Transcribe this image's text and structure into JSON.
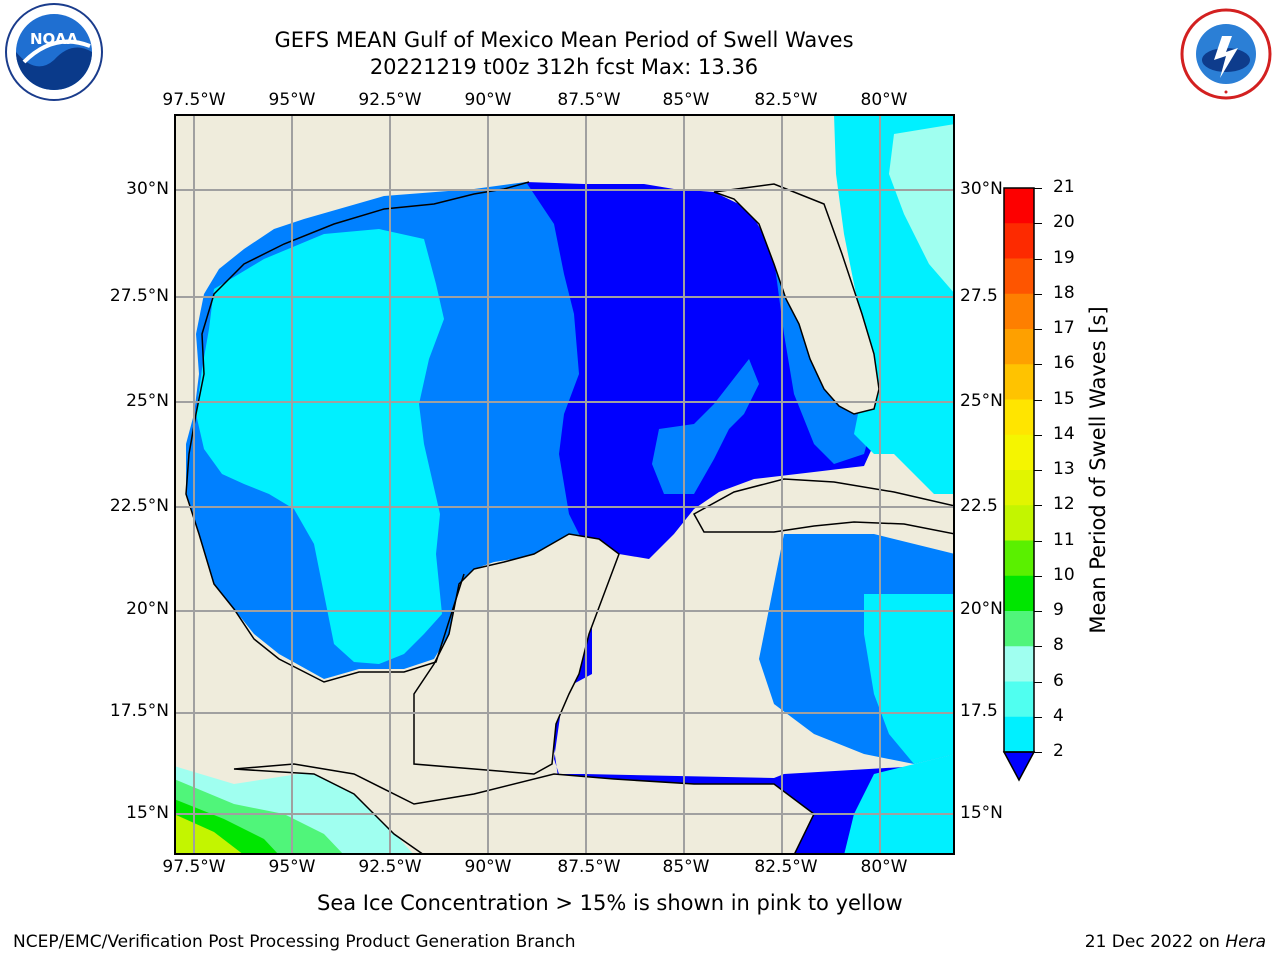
{
  "header": {
    "title_line1": "GEFS MEAN Gulf of Mexico Mean Period of Swell Waves",
    "title_line2": "20221219 t00z 312h fcst   Max: 13.36"
  },
  "logos": {
    "left": "NOAA",
    "left_ring": "NATIONAL OCEANIC AND ATMOSPHERIC ADMINISTRATION · U.S. DEPARTMENT OF COMMERCE",
    "right_ring": "NATIONAL WEATHER SERVICE"
  },
  "axes": {
    "lon_labels": [
      "97.5°W",
      "95°W",
      "92.5°W",
      "90°W",
      "87.5°W",
      "85°W",
      "82.5°W",
      "80°W"
    ],
    "lat_labels_left": [
      "30°N",
      "27.5°N",
      "25°N",
      "22.5°N",
      "20°N",
      "17.5°N",
      "15°N"
    ],
    "lat_labels_right": [
      "30°N",
      "27.5",
      "25°N",
      "22.5",
      "20°N",
      "17.5",
      "15°N"
    ]
  },
  "colorbar": {
    "label": "Mean Period of Swell Waves [s]",
    "ticks": [
      "21",
      "20",
      "19",
      "18",
      "17",
      "16",
      "15",
      "14",
      "13",
      "12",
      "11",
      "10",
      "9",
      "8",
      "6",
      "4",
      "2"
    ],
    "colors": [
      "#fd0000",
      "#fd2a00",
      "#fe5500",
      "#fe7f00",
      "#fea000",
      "#ffc300",
      "#ffe500",
      "#f5f500",
      "#e1f500",
      "#c3f500",
      "#5af000",
      "#00e600",
      "#50f57a",
      "#a0fff0",
      "#50fff0",
      "#00f0ff",
      "#0080ff",
      "#0000ff"
    ]
  },
  "map_colors": {
    "land": "#efecdc",
    "period_2_4": "#0080ff",
    "period_below_2": "#0000ff",
    "period_4_6": "#00f0ff",
    "period_6_8": "#50fff0",
    "period_8_9": "#a0fff0",
    "period_9_10": "#50f57a",
    "period_10_11": "#00e600",
    "period_12_13": "#c3f500"
  },
  "notes": {
    "sea_ice": "Sea Ice Concentration > 15% is shown in pink to yellow"
  },
  "footer": {
    "left": "NCEP/EMC/Verification Post Processing Product Generation Branch",
    "right_prefix": "21 Dec 2022 on ",
    "right_host": "Hera"
  }
}
